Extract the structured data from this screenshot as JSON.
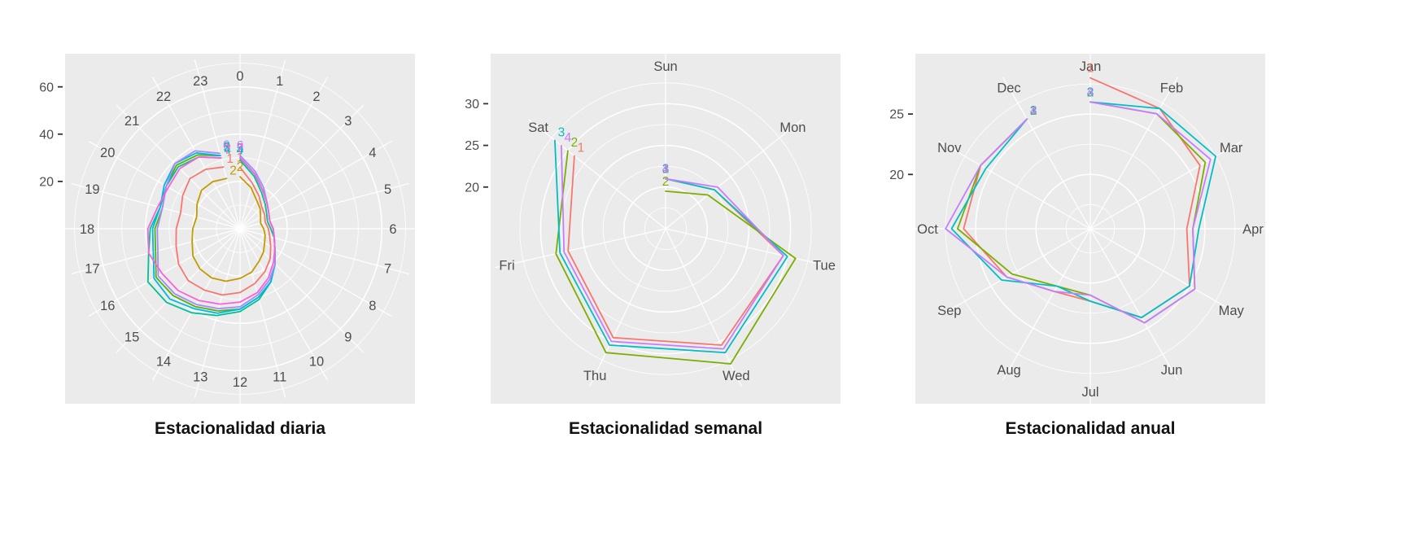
{
  "styles": {
    "panel_bg": "#EBEBEB",
    "grid_color": "#FFFFFF",
    "axis_text_color": "#4D4D4D",
    "tick_mark_color": "#333333",
    "title_color": "#111111"
  },
  "chart_data": [
    {
      "type": "line",
      "polar": true,
      "direction": "clockwise",
      "start": "top",
      "grid": true,
      "legend_position": "none",
      "title": "Estacionalidad diaria",
      "categories": [
        "0",
        "1",
        "2",
        "3",
        "4",
        "5",
        "6",
        "7",
        "8",
        "9",
        "10",
        "11",
        "12",
        "13",
        "14",
        "15",
        "16",
        "17",
        "18",
        "19",
        "20",
        "21",
        "22",
        "23"
      ],
      "rticks": [
        20,
        40,
        60
      ],
      "rlim": [
        0,
        74
      ],
      "series": [
        {
          "name": "1",
          "color": "#F8766D",
          "values": [
            26,
            20,
            16,
            13,
            12,
            11,
            12,
            13,
            15,
            18,
            21,
            24,
            27,
            29,
            30,
            31,
            30,
            28,
            27,
            26,
            28,
            30,
            29,
            27
          ]
        },
        {
          "name": "2",
          "color": "#C49A00",
          "values": [
            22,
            18,
            14,
            12,
            10,
            9,
            10,
            11,
            12,
            14,
            16,
            19,
            21,
            23,
            24,
            24,
            23,
            21,
            20,
            19,
            21,
            23,
            23,
            22
          ]
        },
        {
          "name": "3",
          "color": "#53B400",
          "values": [
            30,
            24,
            19,
            16,
            14,
            13,
            14,
            15,
            17,
            21,
            26,
            30,
            34,
            36,
            38,
            40,
            41,
            37,
            36,
            34,
            36,
            38,
            36,
            32
          ]
        },
        {
          "name": "4",
          "color": "#00C094",
          "values": [
            29,
            23,
            18,
            15,
            13,
            12,
            13,
            15,
            17,
            21,
            26,
            31,
            35,
            38,
            41,
            44,
            45,
            40,
            38,
            35,
            36,
            37,
            35,
            31
          ]
        },
        {
          "name": "5",
          "color": "#00B6EB",
          "values": [
            30,
            24,
            19,
            16,
            14,
            13,
            14,
            15,
            17,
            21,
            26,
            30,
            34,
            37,
            39,
            42,
            42,
            38,
            37,
            35,
            37,
            39,
            37,
            32
          ]
        },
        {
          "name": "6",
          "color": "#A58AFF",
          "values": [
            31,
            25,
            20,
            16,
            14,
            13,
            14,
            15,
            17,
            21,
            25,
            29,
            33,
            35,
            37,
            39,
            40,
            36,
            35,
            34,
            36,
            39,
            38,
            33
          ]
        },
        {
          "name": "7",
          "color": "#FB61D7",
          "values": [
            30,
            24,
            19,
            16,
            14,
            13,
            14,
            15,
            17,
            20,
            24,
            28,
            31,
            33,
            35,
            37,
            38,
            40,
            39,
            36,
            35,
            36,
            35,
            31
          ]
        }
      ]
    },
    {
      "type": "line",
      "polar": true,
      "direction": "clockwise",
      "start": "top",
      "grid": true,
      "legend_position": "none",
      "title": "Estacionalidad semanal",
      "categories": [
        "Sun",
        "Mon",
        "Tue",
        "Wed",
        "Thu",
        "Fri",
        "Sat"
      ],
      "rticks": [
        20,
        25,
        30
      ],
      "rlim": [
        15,
        36
      ],
      "series": [
        {
          "name": "1",
          "color": "#F8766D",
          "values": [
            21,
            22.5,
            29.5,
            30.5,
            29.5,
            27,
            29
          ]
        },
        {
          "name": "2",
          "color": "#7CAE00",
          "values": [
            19.5,
            21.5,
            31,
            33,
            31.5,
            28.5,
            30
          ]
        },
        {
          "name": "3",
          "color": "#00BFC4",
          "values": [
            21,
            22.5,
            30,
            31.5,
            30.5,
            28,
            32
          ]
        },
        {
          "name": "4",
          "color": "#C77CFF",
          "values": [
            21,
            23,
            29.5,
            31,
            30,
            27.5,
            31
          ]
        }
      ]
    },
    {
      "type": "line",
      "polar": true,
      "direction": "clockwise",
      "start": "top",
      "grid": true,
      "legend_position": "none",
      "title": "Estacionalidad anual",
      "categories": [
        "Jan",
        "Feb",
        "Mar",
        "Apr",
        "May",
        "Jun",
        "Jul",
        "Aug",
        "Sep",
        "Oct",
        "Nov",
        "Dec"
      ],
      "rticks": [
        20,
        25
      ],
      "rlim": [
        15.5,
        30
      ],
      "series": [
        {
          "name": "1",
          "color": "#F8766D",
          "values": [
            28,
            27,
            26,
            23.5,
            25,
            24,
            21.5,
            21.5,
            23.5,
            26,
            26,
            26
          ]
        },
        {
          "name": "2",
          "color": "#7CAE00",
          "values": [
            26,
            26.5,
            26.5,
            24,
            25.5,
            24.5,
            21,
            21,
            23,
            26.5,
            26,
            26
          ]
        },
        {
          "name": "3",
          "color": "#00BFC4",
          "values": [
            26,
            27,
            27.5,
            24.5,
            25,
            24,
            21.5,
            21,
            24,
            27,
            25.5,
            26
          ]
        },
        {
          "name": "4",
          "color": "#C77CFF",
          "values": [
            26,
            26.5,
            27,
            24,
            25.5,
            24.5,
            21,
            21.5,
            23.5,
            27.5,
            26,
            26
          ]
        }
      ]
    }
  ]
}
